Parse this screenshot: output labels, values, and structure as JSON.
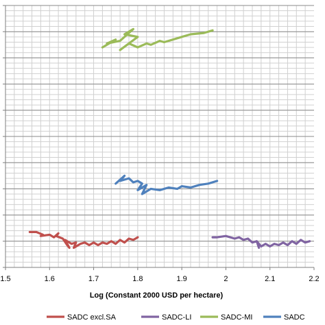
{
  "chart_data": {
    "type": "line",
    "title": "",
    "xlabel": "Log (Constant 2000 USD per hectare)",
    "ylabel": "",
    "xlim": [
      1.5,
      2.2
    ],
    "ylim": [
      0,
      10
    ],
    "x_ticks": [
      "1.5",
      "1.6",
      "1.7",
      "1.8",
      "1.9",
      "2",
      "2.1",
      "2.2"
    ],
    "grid": true,
    "legend_position": "bottom",
    "series": [
      {
        "name": "SADC excl.SA",
        "color": "#c0504d",
        "x": [
          1.555,
          1.57,
          1.585,
          1.58,
          1.6,
          1.61,
          1.62,
          1.615,
          1.63,
          1.64,
          1.645,
          1.635,
          1.65,
          1.66,
          1.655,
          1.67,
          1.68,
          1.69,
          1.7,
          1.71,
          1.72,
          1.73,
          1.74,
          1.75,
          1.76,
          1.77,
          1.78,
          1.79,
          1.8
        ],
        "y": [
          1.35,
          1.35,
          1.25,
          1.2,
          1.25,
          1.15,
          1.3,
          1.2,
          1.1,
          0.85,
          0.75,
          1.05,
          0.9,
          0.95,
          0.75,
          0.9,
          0.95,
          0.85,
          0.95,
          0.85,
          0.95,
          0.9,
          1.0,
          0.9,
          1.05,
          0.95,
          1.1,
          1.05,
          1.15
        ]
      },
      {
        "name": "SADC-LI",
        "color": "#8064a2",
        "x": [
          1.97,
          1.98,
          2.0,
          2.02,
          2.03,
          2.04,
          2.05,
          2.06,
          2.07,
          2.075,
          2.07,
          2.08,
          2.09,
          2.1,
          2.11,
          2.12,
          2.13,
          2.14,
          2.15,
          2.16,
          2.17,
          2.18,
          2.19
        ],
        "y": [
          1.15,
          1.15,
          1.2,
          1.1,
          1.15,
          1.05,
          1.1,
          0.95,
          1.0,
          0.75,
          1.0,
          0.8,
          0.9,
          0.8,
          0.9,
          0.85,
          0.95,
          0.85,
          1.0,
          0.9,
          1.05,
          0.95,
          1.0
        ]
      },
      {
        "name": "SADC-MI",
        "color": "#9bbb59",
        "x": [
          1.72,
          1.75,
          1.73,
          1.76,
          1.78,
          1.79,
          1.77,
          1.8,
          1.76,
          1.78,
          1.8,
          1.82,
          1.83,
          1.85,
          1.86,
          1.88,
          1.9,
          1.92,
          1.95,
          1.97
        ],
        "y": [
          8.4,
          8.7,
          8.55,
          8.65,
          8.95,
          9.1,
          8.9,
          8.8,
          8.3,
          8.55,
          8.4,
          8.55,
          8.5,
          8.65,
          8.6,
          8.7,
          8.8,
          8.9,
          8.95,
          9.05
        ]
      },
      {
        "name": "SADC",
        "color": "#4f81bd",
        "x": [
          1.75,
          1.77,
          1.76,
          1.78,
          1.79,
          1.8,
          1.81,
          1.8,
          1.82,
          1.81,
          1.83,
          1.85,
          1.87,
          1.89,
          1.9,
          1.92,
          1.94,
          1.96,
          1.98
        ],
        "y": [
          3.2,
          3.5,
          3.3,
          3.4,
          3.25,
          3.3,
          3.2,
          2.95,
          3.15,
          2.8,
          3.0,
          2.95,
          3.05,
          3.0,
          3.1,
          3.05,
          3.15,
          3.2,
          3.3
        ]
      }
    ]
  }
}
